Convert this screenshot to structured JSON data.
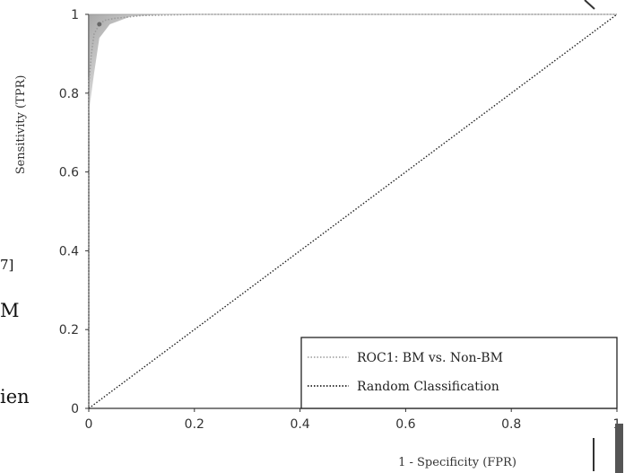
{
  "page_fragments": [
    {
      "id": "frag-1",
      "text": "7]"
    },
    {
      "id": "frag-2",
      "text": "M"
    },
    {
      "id": "frag-3",
      "text": "ien"
    }
  ],
  "chart_data": {
    "type": "line",
    "title": "",
    "xlabel": "1 - Specificity (FPR)",
    "ylabel": "Sensitivity (TPR)",
    "xlim": [
      0,
      1
    ],
    "ylim": [
      0,
      1
    ],
    "x_ticks": [
      "0",
      "0.2",
      "0.4",
      "0.6",
      "0.8",
      "1"
    ],
    "y_ticks": [
      "0",
      "0.2",
      "0.4",
      "0.6",
      "0.8",
      "1"
    ],
    "grid": false,
    "legend_position": "bottom-right",
    "series": [
      {
        "name": "ROC1: BM vs. Non-BM",
        "style": "dotted",
        "color": "#9a9a9a",
        "x": [
          0,
          0.0,
          0.005,
          0.01,
          0.02,
          0.03,
          0.05,
          0.1,
          0.2,
          0.4,
          1
        ],
        "y": [
          0,
          0.82,
          0.9,
          0.95,
          0.975,
          0.985,
          0.99,
          0.997,
          1,
          1,
          1
        ],
        "operating_point": {
          "x": 0.02,
          "y": 0.975
        }
      },
      {
        "name": "Random Classification",
        "style": "dotted",
        "color": "#222222",
        "x": [
          0,
          1
        ],
        "y": [
          0,
          1
        ]
      }
    ]
  }
}
